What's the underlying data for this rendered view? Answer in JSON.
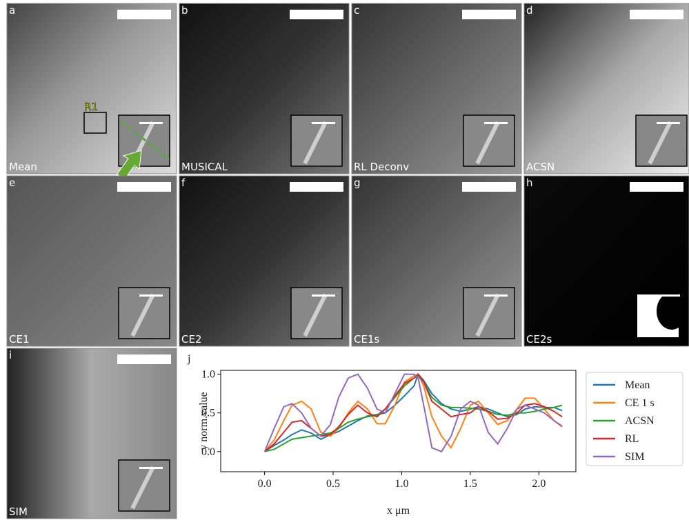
{
  "panels": [
    {
      "letter": "a",
      "label": "Mean"
    },
    {
      "letter": "b",
      "label": "MUSICAL"
    },
    {
      "letter": "c",
      "label": "RL Deconv"
    },
    {
      "letter": "d",
      "label": "ACSN"
    },
    {
      "letter": "e",
      "label": "CE1"
    },
    {
      "letter": "f",
      "label": "CE2"
    },
    {
      "letter": "g",
      "label": "CE1s"
    },
    {
      "letter": "h",
      "label": "CE2s"
    },
    {
      "letter": "i",
      "label": "SIM"
    }
  ],
  "roi_label": "R1",
  "chart_data": {
    "type": "line",
    "panel_letter": "j",
    "x_label": "x μm",
    "y_label": "y norm.value",
    "x": [
      0,
      0.07,
      0.14,
      0.2,
      0.27,
      0.34,
      0.41,
      0.48,
      0.54,
      0.61,
      0.68,
      0.75,
      0.82,
      0.88,
      0.95,
      1.02,
      1.09,
      1.12,
      1.16,
      1.22,
      1.29,
      1.36,
      1.43,
      1.5,
      1.56,
      1.63,
      1.7,
      1.77,
      1.84,
      1.9,
      1.97,
      2.04,
      2.11,
      2.17
    ],
    "series": [
      {
        "name": "Mean",
        "color": "#1f77b4",
        "values": [
          0,
          0.08,
          0.15,
          0.22,
          0.28,
          0.24,
          0.16,
          0.22,
          0.26,
          0.33,
          0.4,
          0.46,
          0.48,
          0.5,
          0.6,
          0.72,
          0.85,
          1.0,
          0.92,
          0.75,
          0.62,
          0.55,
          0.52,
          0.55,
          0.58,
          0.55,
          0.5,
          0.45,
          0.48,
          0.55,
          0.58,
          0.57,
          0.57,
          0.53
        ]
      },
      {
        "name": "CE 1 s",
        "color": "#ff7f0e",
        "values": [
          0,
          0.15,
          0.4,
          0.6,
          0.65,
          0.55,
          0.25,
          0.2,
          0.3,
          0.5,
          0.65,
          0.55,
          0.36,
          0.36,
          0.6,
          0.9,
          0.98,
          1.0,
          0.85,
          0.45,
          0.2,
          0.05,
          0.3,
          0.6,
          0.65,
          0.5,
          0.35,
          0.4,
          0.55,
          0.69,
          0.69,
          0.55,
          0.4,
          0.32
        ]
      },
      {
        "name": "ACSN",
        "color": "#2ca02c",
        "values": [
          0,
          0.03,
          0.1,
          0.16,
          0.18,
          0.2,
          0.22,
          0.24,
          0.3,
          0.38,
          0.42,
          0.45,
          0.47,
          0.55,
          0.7,
          0.85,
          0.95,
          0.98,
          0.9,
          0.7,
          0.6,
          0.57,
          0.57,
          0.56,
          0.55,
          0.52,
          0.48,
          0.47,
          0.5,
          0.5,
          0.52,
          0.55,
          0.57,
          0.6
        ]
      },
      {
        "name": "RL",
        "color": "#d62728",
        "values": [
          0,
          0.1,
          0.25,
          0.38,
          0.4,
          0.3,
          0.2,
          0.22,
          0.32,
          0.48,
          0.6,
          0.5,
          0.45,
          0.55,
          0.72,
          0.88,
          0.95,
          1.0,
          0.9,
          0.65,
          0.55,
          0.45,
          0.48,
          0.5,
          0.58,
          0.52,
          0.42,
          0.43,
          0.5,
          0.6,
          0.62,
          0.58,
          0.52,
          0.45
        ]
      },
      {
        "name": "SIM",
        "color": "#9467bd",
        "values": [
          0,
          0.3,
          0.58,
          0.62,
          0.5,
          0.3,
          0.2,
          0.35,
          0.7,
          0.95,
          1.0,
          0.82,
          0.55,
          0.5,
          0.75,
          1.0,
          1.0,
          0.95,
          0.6,
          0.05,
          0.0,
          0.2,
          0.55,
          0.65,
          0.6,
          0.25,
          0.1,
          0.3,
          0.55,
          0.6,
          0.55,
          0.5,
          0.4,
          0.33
        ]
      }
    ],
    "xlim": [
      -0.32,
      2.27
    ],
    "ylim": [
      -0.26,
      1.05
    ],
    "xticks": [
      {
        "value": 0,
        "label": "0.0"
      },
      0.5,
      {
        "value": 1,
        "label": "1.0"
      },
      1.5,
      {
        "value": 2,
        "label": "2.0"
      }
    ],
    "yticks": [
      {
        "value": 0,
        "label": "0.0"
      },
      0.5,
      {
        "value": 1,
        "label": "1.0"
      }
    ],
    "legend": "right"
  }
}
